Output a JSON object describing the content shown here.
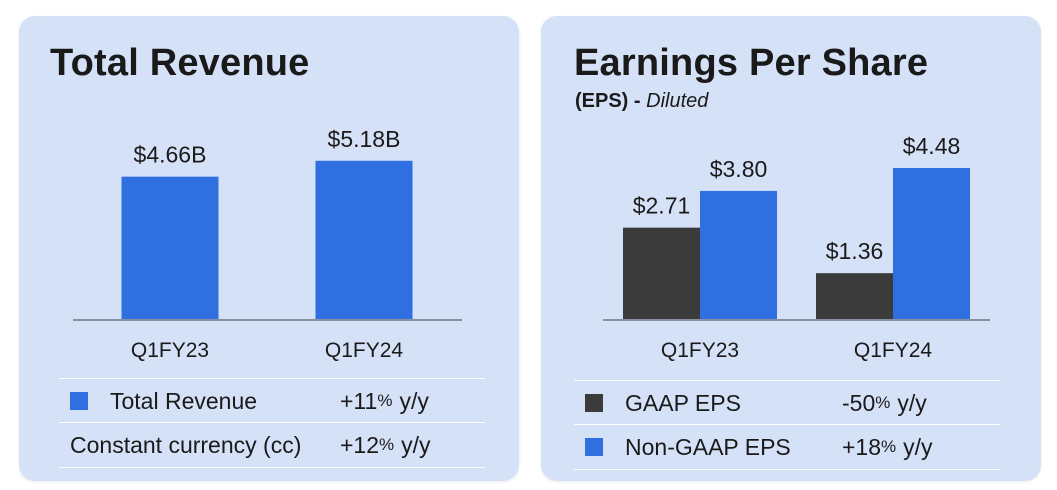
{
  "colors": {
    "panel_bg": "#d5e1f7",
    "blue": "#2f6fdf",
    "dark": "#3b3b3b",
    "axis": "#8a8fa0",
    "divider": "#ffffff"
  },
  "revenue": {
    "title": "Total Revenue",
    "legend": [
      {
        "label": "Total Revenue",
        "change": "+11",
        "pct": "%",
        "unit": "y/y",
        "swatch": "blue"
      },
      {
        "label": "Constant currency (cc)",
        "change": "+12",
        "pct": "%",
        "unit": "y/y",
        "swatch": null
      }
    ]
  },
  "eps": {
    "title": "Earnings Per Share",
    "subtitle_bold": "(EPS)",
    "subtitle_sep": " - ",
    "subtitle_italic": "Diluted",
    "legend": [
      {
        "label": "GAAP EPS",
        "change": "-50",
        "pct": "%",
        "unit": "y/y",
        "swatch": "dark"
      },
      {
        "label": "Non-GAAP EPS",
        "change": "+18",
        "pct": "%",
        "unit": "y/y",
        "swatch": "blue"
      }
    ]
  },
  "chart_data": [
    {
      "type": "bar",
      "title": "Total Revenue",
      "categories": [
        "Q1FY23",
        "Q1FY24"
      ],
      "series": [
        {
          "name": "Total Revenue",
          "values": [
            4.66,
            5.18
          ],
          "labels": [
            "$4.66B",
            "$5.18B"
          ],
          "color": "#2f6fdf"
        }
      ],
      "ylim": [
        0,
        5.5
      ],
      "grid": false,
      "legend": "bottom"
    },
    {
      "type": "bar",
      "title": "Earnings Per Share",
      "categories": [
        "Q1FY23",
        "Q1FY24"
      ],
      "series": [
        {
          "name": "GAAP EPS",
          "values": [
            2.71,
            1.36
          ],
          "labels": [
            "$2.71",
            "$1.36"
          ],
          "color": "#3b3b3b"
        },
        {
          "name": "Non-GAAP EPS",
          "values": [
            3.8,
            4.48
          ],
          "labels": [
            "$3.80",
            "$4.48"
          ],
          "color": "#2f6fdf"
        }
      ],
      "ylim": [
        0,
        4.48
      ],
      "grid": false,
      "legend": "bottom"
    }
  ]
}
